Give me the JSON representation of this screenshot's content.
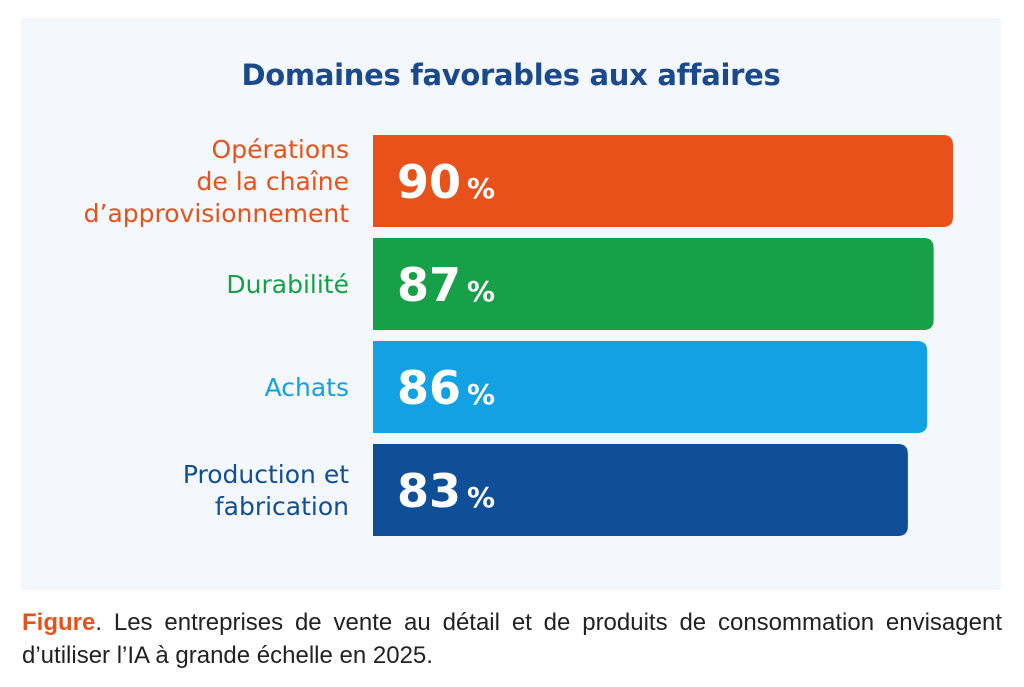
{
  "chart_data": {
    "type": "bar",
    "orientation": "horizontal",
    "title": "Domaines favorables aux affaires",
    "categories": [
      [
        "Opérations",
        "de la chaîne",
        "d’approvisionnement"
      ],
      [
        "Durabilité"
      ],
      [
        "Achats"
      ],
      [
        "Production et",
        "fabrication"
      ]
    ],
    "values": [
      90,
      87,
      86,
      83
    ],
    "value_labels": [
      "90",
      "87",
      "86",
      "83"
    ],
    "unit": "%",
    "colors": [
      "#e8521a",
      "#17a048",
      "#12a1e2",
      "#0e4f98"
    ],
    "grid": false,
    "legend": "none"
  },
  "caption": {
    "label": "Figure",
    "text": ". Les entreprises de vente au détail et de produits de consommation envisagent d’utiliser l’IA à grande échelle en 2025."
  }
}
